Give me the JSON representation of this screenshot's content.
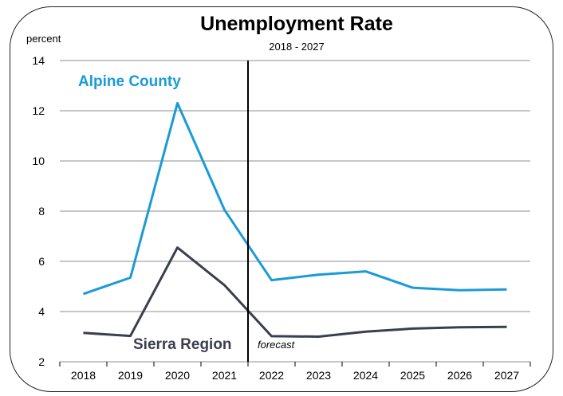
{
  "chart_data": {
    "type": "line",
    "title": "Unemployment Rate",
    "subtitle": "2018 - 2027",
    "ylabel": "percent",
    "ylim": [
      2,
      14
    ],
    "yticks": [
      "2",
      "4",
      "6",
      "8",
      "10",
      "12",
      "14"
    ],
    "categories": [
      "2018",
      "2019",
      "2020",
      "2021",
      "2022",
      "2023",
      "2024",
      "2025",
      "2026",
      "2027"
    ],
    "grid": true,
    "series": [
      {
        "name": "Alpine County",
        "color": "#1a9bd7",
        "values": [
          4.7,
          5.35,
          12.3,
          8.05,
          5.25,
          5.47,
          5.6,
          4.95,
          4.85,
          4.88
        ]
      },
      {
        "name": "Sierra Region",
        "color": "#3a3f4f",
        "values": [
          3.15,
          3.03,
          6.55,
          5.05,
          3.02,
          3.0,
          3.2,
          3.32,
          3.37,
          3.39
        ]
      }
    ],
    "forecast_divider_x": 2021.5,
    "annotations": [
      {
        "text": "forecast"
      }
    ]
  }
}
